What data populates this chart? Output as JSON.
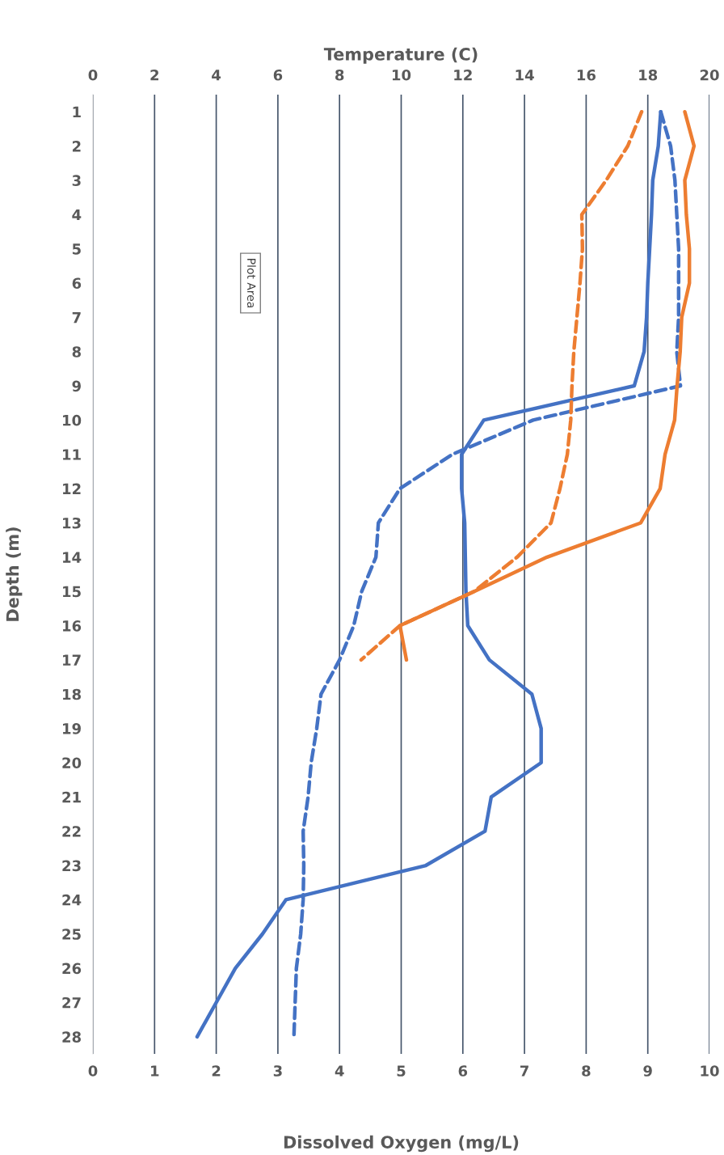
{
  "chart_data": {
    "type": "line",
    "orientation": "horizontal",
    "xlabel": "Dissolved Oxygen (mg/L)",
    "x2label": "Temperature (C)",
    "ylabel": "Depth (m)",
    "x": [
      1,
      2,
      3,
      4,
      5,
      6,
      7,
      8,
      9,
      10,
      11,
      12,
      13,
      14,
      15,
      16,
      17,
      18,
      19,
      20,
      21,
      22,
      23,
      24,
      25,
      26,
      27,
      28
    ],
    "xlim": [
      0,
      10
    ],
    "xticks": [
      0,
      1,
      2,
      3,
      4,
      5,
      6,
      7,
      8,
      9,
      10
    ],
    "x2lim": [
      0,
      20
    ],
    "x2ticks": [
      0,
      2,
      4,
      6,
      8,
      10,
      12,
      14,
      16,
      18,
      20
    ],
    "ylim": [
      28.5,
      0.5
    ],
    "yticks": [
      1,
      2,
      3,
      4,
      5,
      6,
      7,
      8,
      9,
      10,
      11,
      12,
      13,
      14,
      15,
      16,
      17,
      18,
      19,
      20,
      21,
      22,
      23,
      24,
      25,
      26,
      27,
      28
    ],
    "grid": "x",
    "marker": "none",
    "series": [
      {
        "color": "#4472c4",
        "line_style": "solid",
        "values": [
          9.21,
          9.17,
          9.08,
          9.06,
          9.03,
          9.0,
          8.98,
          8.94,
          8.78,
          6.34,
          5.98,
          5.98,
          6.03,
          6.04,
          6.05,
          6.08,
          6.43,
          7.12,
          7.27,
          7.27,
          6.46,
          6.36,
          5.4,
          3.13,
          2.75,
          2.31,
          2.0,
          1.69
        ]
      },
      {
        "color": "#4472c4",
        "line_style": "dashed",
        "values": [
          9.21,
          9.37,
          9.44,
          9.47,
          9.5,
          9.5,
          9.5,
          9.47,
          9.53,
          7.14,
          5.83,
          4.98,
          4.63,
          4.59,
          4.36,
          4.23,
          4.0,
          3.7,
          3.63,
          3.54,
          3.49,
          3.41,
          3.42,
          3.41,
          3.37,
          3.3,
          3.28,
          3.26
        ]
      },
      {
        "color": "#ed7d31",
        "line_style": "solid",
        "axis": "x2",
        "x": [
          1,
          2,
          3,
          4,
          5,
          6,
          7,
          8,
          9,
          10,
          11,
          12,
          13,
          14,
          15,
          16,
          17
        ],
        "values": [
          19.2,
          19.5,
          19.2,
          19.25,
          19.35,
          19.35,
          19.1,
          19.05,
          18.95,
          18.87,
          18.56,
          18.4,
          17.77,
          14.73,
          12.37,
          9.96,
          10.17
        ]
      },
      {
        "color": "#ed7d31",
        "line_style": "dashed",
        "axis": "x2",
        "x": [
          1,
          2,
          3,
          4,
          5,
          6,
          7,
          8,
          9,
          10,
          11,
          12,
          13,
          14,
          15,
          16,
          17
        ],
        "values": [
          17.8,
          17.35,
          16.65,
          15.86,
          15.88,
          15.8,
          15.7,
          15.6,
          15.54,
          15.5,
          15.39,
          15.15,
          14.86,
          13.76,
          12.37,
          9.96,
          8.7
        ]
      }
    ],
    "annotations": [
      {
        "text": "Plot Area"
      }
    ]
  }
}
